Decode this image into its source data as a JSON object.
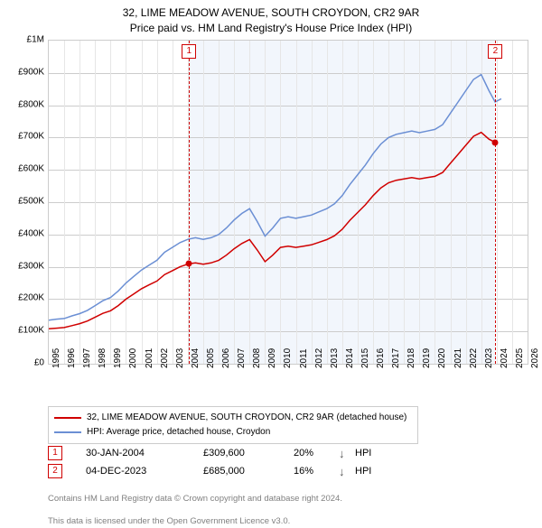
{
  "title": {
    "line1": "32, LIME MEADOW AVENUE, SOUTH CROYDON, CR2 9AR",
    "line2": "Price paid vs. HM Land Registry's House Price Index (HPI)"
  },
  "chart": {
    "type": "line",
    "background_color": "#ffffff",
    "grid_color": "#cccccc",
    "shade_color": "#f2f6fc",
    "shade_x_start": 2004.08,
    "shade_x_end": 2023.92,
    "xlim": [
      1995,
      2026
    ],
    "ylim": [
      0,
      1000000
    ],
    "ytick_step": 100000,
    "ytick_labels": [
      "£0",
      "£100K",
      "£200K",
      "£300K",
      "£400K",
      "£500K",
      "£600K",
      "£700K",
      "£800K",
      "£900K",
      "£1M"
    ],
    "xtick_step": 1,
    "xtick_labels": [
      "1995",
      "1996",
      "1997",
      "1998",
      "1999",
      "2000",
      "2001",
      "2002",
      "2003",
      "2004",
      "2005",
      "2006",
      "2007",
      "2008",
      "2009",
      "2010",
      "2011",
      "2012",
      "2013",
      "2014",
      "2015",
      "2016",
      "2017",
      "2018",
      "2019",
      "2020",
      "2021",
      "2022",
      "2023",
      "2024",
      "2025",
      "2026"
    ],
    "series": [
      {
        "name": "hpi",
        "color": "#6b8fd4",
        "width": 1.5,
        "points": [
          [
            1995.0,
            135000
          ],
          [
            1995.5,
            138000
          ],
          [
            1996.0,
            140000
          ],
          [
            1996.5,
            148000
          ],
          [
            1997.0,
            155000
          ],
          [
            1997.5,
            165000
          ],
          [
            1998.0,
            180000
          ],
          [
            1998.5,
            195000
          ],
          [
            1999.0,
            205000
          ],
          [
            1999.5,
            225000
          ],
          [
            2000.0,
            250000
          ],
          [
            2000.5,
            270000
          ],
          [
            2001.0,
            290000
          ],
          [
            2001.5,
            305000
          ],
          [
            2002.0,
            320000
          ],
          [
            2002.5,
            345000
          ],
          [
            2003.0,
            360000
          ],
          [
            2003.5,
            375000
          ],
          [
            2004.0,
            385000
          ],
          [
            2004.5,
            390000
          ],
          [
            2005.0,
            385000
          ],
          [
            2005.5,
            390000
          ],
          [
            2006.0,
            400000
          ],
          [
            2006.5,
            420000
          ],
          [
            2007.0,
            445000
          ],
          [
            2007.5,
            465000
          ],
          [
            2008.0,
            480000
          ],
          [
            2008.5,
            440000
          ],
          [
            2009.0,
            395000
          ],
          [
            2009.5,
            420000
          ],
          [
            2010.0,
            450000
          ],
          [
            2010.5,
            455000
          ],
          [
            2011.0,
            450000
          ],
          [
            2011.5,
            455000
          ],
          [
            2012.0,
            460000
          ],
          [
            2012.5,
            470000
          ],
          [
            2013.0,
            480000
          ],
          [
            2013.5,
            495000
          ],
          [
            2014.0,
            520000
          ],
          [
            2014.5,
            555000
          ],
          [
            2015.0,
            585000
          ],
          [
            2015.5,
            615000
          ],
          [
            2016.0,
            650000
          ],
          [
            2016.5,
            680000
          ],
          [
            2017.0,
            700000
          ],
          [
            2017.5,
            710000
          ],
          [
            2018.0,
            715000
          ],
          [
            2018.5,
            720000
          ],
          [
            2019.0,
            715000
          ],
          [
            2019.5,
            720000
          ],
          [
            2020.0,
            725000
          ],
          [
            2020.5,
            740000
          ],
          [
            2021.0,
            775000
          ],
          [
            2021.5,
            810000
          ],
          [
            2022.0,
            845000
          ],
          [
            2022.5,
            880000
          ],
          [
            2023.0,
            895000
          ],
          [
            2023.5,
            845000
          ],
          [
            2023.9,
            810000
          ],
          [
            2024.3,
            820000
          ]
        ]
      },
      {
        "name": "price_paid",
        "color": "#d00000",
        "width": 1.5,
        "points": [
          [
            1995.0,
            108000
          ],
          [
            1995.5,
            110000
          ],
          [
            1996.0,
            112000
          ],
          [
            1996.5,
            118000
          ],
          [
            1997.0,
            124000
          ],
          [
            1997.5,
            132000
          ],
          [
            1998.0,
            144000
          ],
          [
            1998.5,
            156000
          ],
          [
            1999.0,
            164000
          ],
          [
            1999.5,
            180000
          ],
          [
            2000.0,
            200000
          ],
          [
            2000.5,
            216000
          ],
          [
            2001.0,
            232000
          ],
          [
            2001.5,
            244000
          ],
          [
            2002.0,
            256000
          ],
          [
            2002.5,
            276000
          ],
          [
            2003.0,
            288000
          ],
          [
            2003.5,
            300000
          ],
          [
            2004.08,
            309600
          ],
          [
            2004.5,
            312000
          ],
          [
            2005.0,
            308000
          ],
          [
            2005.5,
            312000
          ],
          [
            2006.0,
            320000
          ],
          [
            2006.5,
            336000
          ],
          [
            2007.0,
            356000
          ],
          [
            2007.5,
            372000
          ],
          [
            2008.0,
            384000
          ],
          [
            2008.5,
            352000
          ],
          [
            2009.0,
            316000
          ],
          [
            2009.5,
            336000
          ],
          [
            2010.0,
            360000
          ],
          [
            2010.5,
            364000
          ],
          [
            2011.0,
            360000
          ],
          [
            2011.5,
            364000
          ],
          [
            2012.0,
            368000
          ],
          [
            2012.5,
            376000
          ],
          [
            2013.0,
            384000
          ],
          [
            2013.5,
            396000
          ],
          [
            2014.0,
            416000
          ],
          [
            2014.5,
            444000
          ],
          [
            2015.0,
            468000
          ],
          [
            2015.5,
            492000
          ],
          [
            2016.0,
            520000
          ],
          [
            2016.5,
            544000
          ],
          [
            2017.0,
            560000
          ],
          [
            2017.5,
            568000
          ],
          [
            2018.0,
            572000
          ],
          [
            2018.5,
            576000
          ],
          [
            2019.0,
            572000
          ],
          [
            2019.5,
            576000
          ],
          [
            2020.0,
            580000
          ],
          [
            2020.5,
            592000
          ],
          [
            2021.0,
            620000
          ],
          [
            2021.5,
            648000
          ],
          [
            2022.0,
            676000
          ],
          [
            2022.5,
            704000
          ],
          [
            2023.0,
            716000
          ],
          [
            2023.5,
            695000
          ],
          [
            2023.92,
            685000
          ]
        ]
      }
    ],
    "markers": [
      {
        "num": "1",
        "x": 2004.08,
        "y": 309600
      },
      {
        "num": "2",
        "x": 2023.92,
        "y": 685000
      }
    ]
  },
  "legend": {
    "items": [
      {
        "color": "#d00000",
        "label": "32, LIME MEADOW AVENUE, SOUTH CROYDON, CR2 9AR (detached house)"
      },
      {
        "color": "#6b8fd4",
        "label": "HPI: Average price, detached house, Croydon"
      }
    ]
  },
  "transactions": [
    {
      "num": "1",
      "date": "30-JAN-2004",
      "price": "£309,600",
      "pct": "20%",
      "arrow": "↓",
      "hpi": "HPI"
    },
    {
      "num": "2",
      "date": "04-DEC-2023",
      "price": "£685,000",
      "pct": "16%",
      "arrow": "↓",
      "hpi": "HPI"
    }
  ],
  "footer": {
    "line1": "Contains HM Land Registry data © Crown copyright and database right 2024.",
    "line2": "This data is licensed under the Open Government Licence v3.0."
  }
}
